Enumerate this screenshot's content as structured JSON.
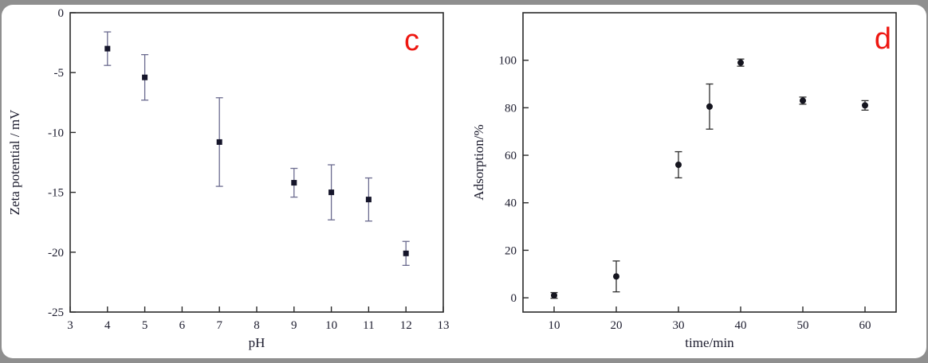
{
  "page": {
    "frame_color": "#8f8f8f",
    "sheet_color": "#ffffff"
  },
  "chart_data": [
    {
      "type": "scatter",
      "panel_label": "c",
      "panel_label_color": "#ee1711",
      "title": "",
      "xlabel": "pH",
      "ylabel": "Zeta potential / mV",
      "xlim": [
        3,
        13
      ],
      "ylim": [
        -25,
        0
      ],
      "xticks": [
        3,
        4,
        5,
        6,
        7,
        8,
        9,
        10,
        11,
        12,
        13
      ],
      "yticks": [
        0,
        -5,
        -10,
        -15,
        -20,
        -25
      ],
      "x": [
        4,
        5,
        7,
        9,
        10,
        11,
        12
      ],
      "y": [
        -3.0,
        -5.4,
        -10.8,
        -14.2,
        -15.0,
        -15.6,
        -20.1
      ],
      "yerr": [
        1.4,
        1.9,
        3.7,
        1.2,
        2.3,
        1.8,
        1.0
      ],
      "marker": "square",
      "marker_color": "#15152a",
      "errorbar_color": "#6b6b8f",
      "axis_color": "#2a2a2a",
      "grid": false,
      "legend": "none"
    },
    {
      "type": "scatter",
      "panel_label": "d",
      "panel_label_color": "#ee1711",
      "title": "",
      "xlabel": "time/min",
      "ylabel": "Adsorption/%",
      "xlim": [
        5,
        65
      ],
      "ylim": [
        -6,
        120
      ],
      "xticks": [
        10,
        20,
        30,
        40,
        50,
        60
      ],
      "yticks": [
        0,
        20,
        40,
        60,
        80,
        100
      ],
      "x": [
        10,
        20,
        30,
        35,
        40,
        50,
        60
      ],
      "y": [
        1,
        9,
        56,
        80.5,
        99,
        83,
        81
      ],
      "yerr": [
        1.2,
        6.5,
        5.5,
        9.5,
        1.5,
        1.5,
        2
      ],
      "marker": "circle",
      "marker_color": "#15151f",
      "errorbar_color": "#2e2e2e",
      "axis_color": "#2a2a2a",
      "grid": false,
      "legend": "none"
    }
  ]
}
